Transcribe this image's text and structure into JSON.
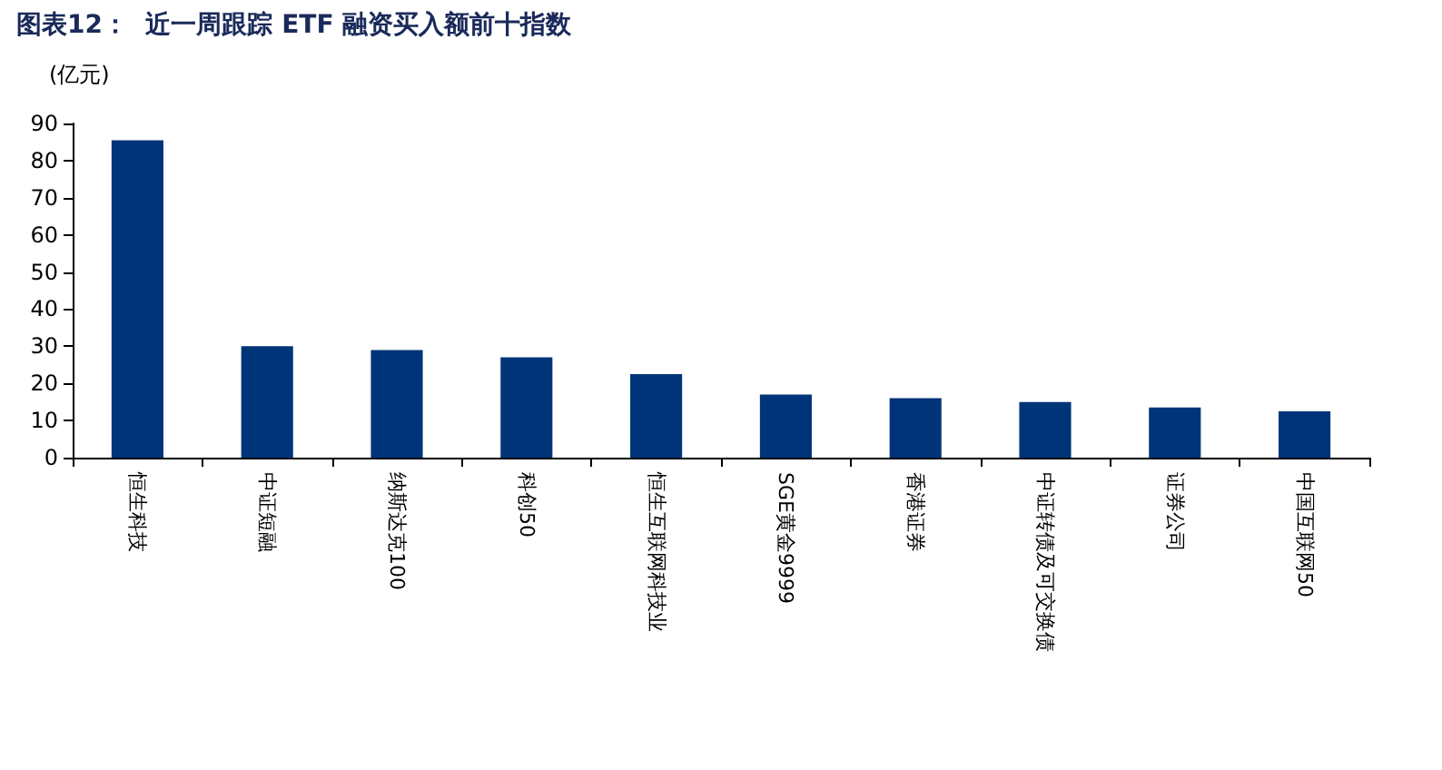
{
  "chart_data": {
    "type": "bar",
    "title": "图表12：  近一周跟踪 ETF 融资买入额前十指数",
    "ylabel": "(亿元)",
    "categories": [
      "恒生科技",
      "中证短融",
      "纳斯达克100",
      "科创50",
      "恒生互联网科技业",
      "SGE黄金9999",
      "香港证券",
      "中证转债及可交换债",
      "证券公司",
      "中国互联网50"
    ],
    "values": [
      85.5,
      30,
      29,
      27,
      22.5,
      17,
      16,
      15,
      13.5,
      12.5
    ],
    "color": "#003478",
    "ylim": [
      0,
      90
    ],
    "yticks": [
      0,
      10,
      20,
      30,
      40,
      50,
      60,
      70,
      80,
      90
    ],
    "grid": false
  }
}
